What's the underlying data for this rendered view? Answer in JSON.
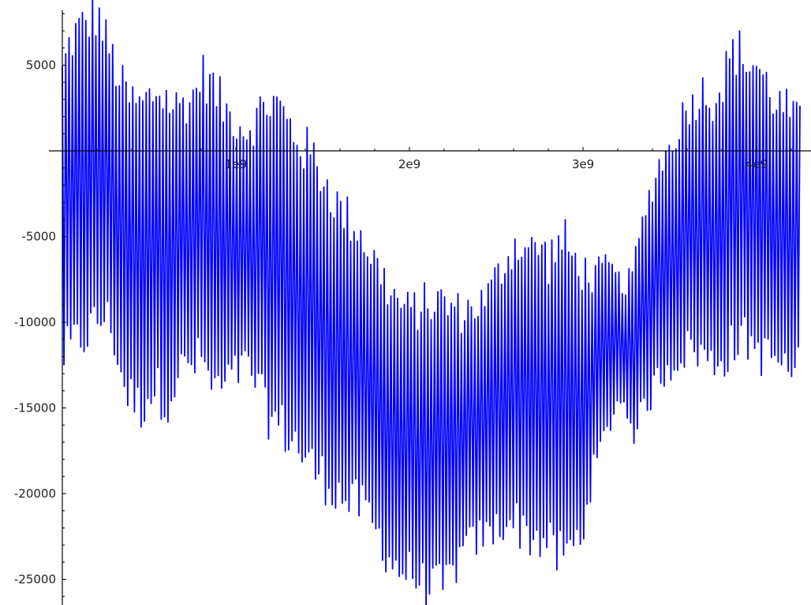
{
  "chart_data": {
    "type": "line",
    "title": "",
    "xlabel": "",
    "ylabel": "",
    "xlim": [
      0,
      4300000000
    ],
    "ylim": [
      -26500,
      8200
    ],
    "grid": false,
    "legend": "none",
    "x_ticks": [
      {
        "value": 1000000000,
        "label": "1e9"
      },
      {
        "value": 2000000000,
        "label": "2e9"
      },
      {
        "value": 3000000000,
        "label": "3e9"
      },
      {
        "value": 4000000000,
        "label": "4e9"
      }
    ],
    "y_ticks": [
      {
        "value": 5000,
        "label": "5000"
      },
      {
        "value": -5000,
        "label": "-5000"
      },
      {
        "value": -10000,
        "label": "-10000"
      },
      {
        "value": -15000,
        "label": "-15000"
      },
      {
        "value": -20000,
        "label": "-20000"
      },
      {
        "value": -25000,
        "label": "-25000"
      }
    ],
    "series": [
      {
        "color": "#0000ff",
        "x": [
          0,
          50000000,
          100000000,
          150000000,
          200000000,
          250000000,
          300000000,
          350000000,
          400000000,
          450000000,
          500000000,
          550000000,
          600000000,
          650000000,
          700000000,
          750000000,
          800000000,
          850000000,
          900000000,
          950000000,
          1000000000,
          1050000000,
          1100000000,
          1150000000,
          1200000000,
          1250000000,
          1300000000,
          1350000000,
          1400000000,
          1450000000,
          1500000000,
          1550000000,
          1600000000,
          1650000000,
          1700000000,
          1750000000,
          1800000000,
          1850000000,
          1900000000,
          1950000000,
          2000000000,
          2050000000,
          2100000000,
          2150000000,
          2200000000,
          2250000000,
          2300000000,
          2350000000,
          2400000000,
          2450000000,
          2500000000,
          2550000000,
          2600000000,
          2650000000,
          2700000000,
          2750000000,
          2800000000,
          2850000000,
          2900000000,
          2950000000,
          3000000000,
          3050000000,
          3100000000,
          3150000000,
          3200000000,
          3250000000,
          3300000000,
          3350000000,
          3400000000,
          3450000000,
          3500000000,
          3550000000,
          3600000000,
          3650000000,
          3700000000,
          3750000000,
          3800000000,
          3850000000,
          3900000000,
          3950000000,
          4000000000,
          4050000000,
          4100000000,
          4150000000,
          4200000000,
          4250000000
        ],
        "upper": [
          4500,
          6500,
          7000,
          7500,
          8000,
          6500,
          5000,
          3500,
          2800,
          2500,
          3000,
          3500,
          3000,
          2500,
          2800,
          3000,
          4500,
          4000,
          3000,
          2200,
          1800,
          1200,
          1500,
          2500,
          2800,
          2500,
          1500,
          800,
          0,
          -500,
          -1500,
          -2500,
          -3500,
          -4000,
          -4500,
          -5500,
          -6500,
          -7500,
          -8500,
          -9000,
          -9500,
          -9200,
          -9000,
          -8800,
          -9000,
          -9200,
          -9500,
          -9200,
          -9000,
          -8500,
          -7500,
          -6500,
          -5500,
          -5500,
          -6000,
          -5500,
          -6500,
          -5500,
          -5500,
          -6500,
          -7000,
          -7500,
          -7000,
          -6800,
          -7500,
          -8000,
          -6500,
          -4000,
          -2000,
          -500,
          0,
          1500,
          2500,
          3000,
          3500,
          3000,
          3800,
          5500,
          5800,
          5000,
          5000,
          4000,
          3000,
          2500,
          2200,
          1500
        ],
        "lower": [
          -12000,
          -11500,
          -11000,
          -10500,
          -10000,
          -9500,
          -11000,
          -13500,
          -14500,
          -15000,
          -14000,
          -14000,
          -14500,
          -13500,
          -12500,
          -12500,
          -12000,
          -13500,
          -14000,
          -13500,
          -13000,
          -12500,
          -13000,
          -14500,
          -15500,
          -16000,
          -16500,
          -17000,
          -18000,
          -18500,
          -19000,
          -19500,
          -20000,
          -20500,
          -20500,
          -21000,
          -22000,
          -23000,
          -24000,
          -24500,
          -24500,
          -25000,
          -25500,
          -25500,
          -25500,
          -24500,
          -23500,
          -23000,
          -22500,
          -22500,
          -22000,
          -21500,
          -21500,
          -22000,
          -22500,
          -22500,
          -23000,
          -23500,
          -23500,
          -23000,
          -22000,
          -19000,
          -17500,
          -16000,
          -14500,
          -15000,
          -16500,
          -15000,
          -14000,
          -13000,
          -12500,
          -12000,
          -11500,
          -11500,
          -12000,
          -12500,
          -12000,
          -11500,
          -11000,
          -11000,
          -11500,
          -12000,
          -12000,
          -12500,
          -13000,
          -12500
        ],
        "sample_count": 220
      }
    ]
  }
}
